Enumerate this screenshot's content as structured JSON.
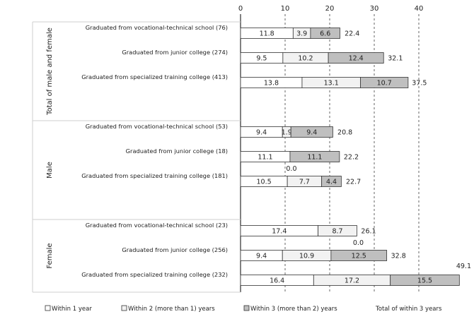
{
  "chart_data": {
    "type": "bar",
    "orientation": "horizontal",
    "stacked": true,
    "xlim": [
      0,
      50
    ],
    "x_ticks": [
      "0",
      "10",
      "20",
      "30",
      "40"
    ],
    "grid": "vertical dashed",
    "legend_position": "bottom",
    "groups": [
      {
        "name": "Total of male and female",
        "rows": [
          {
            "label": "Graduated from vocational-technical school (76)",
            "values": [
              11.8,
              3.9,
              6.6
            ],
            "value_labels": [
              "11.8",
              "3.9",
              "6.6"
            ],
            "total": 22.4,
            "total_label": "22.4"
          },
          {
            "label": "Graduated from junior college (274)",
            "values": [
              9.5,
              10.2,
              12.4
            ],
            "value_labels": [
              "9.5",
              "10.2",
              "12.4"
            ],
            "total": 32.1,
            "total_label": "32.1"
          },
          {
            "label": "Graduated from specialized training college (413)",
            "values": [
              13.8,
              13.1,
              10.7
            ],
            "value_labels": [
              "13.8",
              "13.1",
              "10.7"
            ],
            "total": 37.5,
            "total_label": "37.5"
          }
        ]
      },
      {
        "name": "Male",
        "rows": [
          {
            "label": "Graduated from vocational-technical school (53)",
            "values": [
              9.4,
              1.9,
              9.4
            ],
            "value_labels": [
              "9.4",
              "1.9",
              "9.4"
            ],
            "total": 20.8,
            "total_label": "20.8"
          },
          {
            "label": "Graduated from junior college (18)",
            "values": [
              11.1,
              0.0,
              11.1
            ],
            "value_labels": [
              "11.1",
              "0.0",
              "11.1"
            ],
            "total": 22.2,
            "total_label": "22.2"
          },
          {
            "label": "Graduated from specialized training college (181)",
            "values": [
              10.5,
              7.7,
              4.4
            ],
            "value_labels": [
              "10.5",
              "7.7",
              "4.4"
            ],
            "total": 22.7,
            "total_label": "22.7"
          }
        ]
      },
      {
        "name": "Female",
        "rows": [
          {
            "label": "Graduated from vocational-technical school (23)",
            "values": [
              17.4,
              8.7,
              0.0
            ],
            "value_labels": [
              "17.4",
              "8.7",
              "0.0"
            ],
            "total": 26.1,
            "total_label": "26.1"
          },
          {
            "label": "Graduated from junior college (256)",
            "values": [
              9.4,
              10.9,
              12.5
            ],
            "value_labels": [
              "9.4",
              "10.9",
              "12.5"
            ],
            "total": 32.8,
            "total_label": "32.8"
          },
          {
            "label": "Graduated from specialized training college (232)",
            "values": [
              16.4,
              17.2,
              15.5
            ],
            "value_labels": [
              "16.4",
              "17.2",
              "15.5"
            ],
            "total": 49.1,
            "total_label": "49.1"
          }
        ]
      }
    ],
    "series": [
      {
        "name": "Within 1 year",
        "color": "#ffffff"
      },
      {
        "name": "Within 2 (more than 1) years",
        "color": "#f2f2f2"
      },
      {
        "name": "Within 3 (more than 2) years",
        "color": "#bfbfbf"
      }
    ],
    "total_series_name": "Total of within 3 years"
  }
}
